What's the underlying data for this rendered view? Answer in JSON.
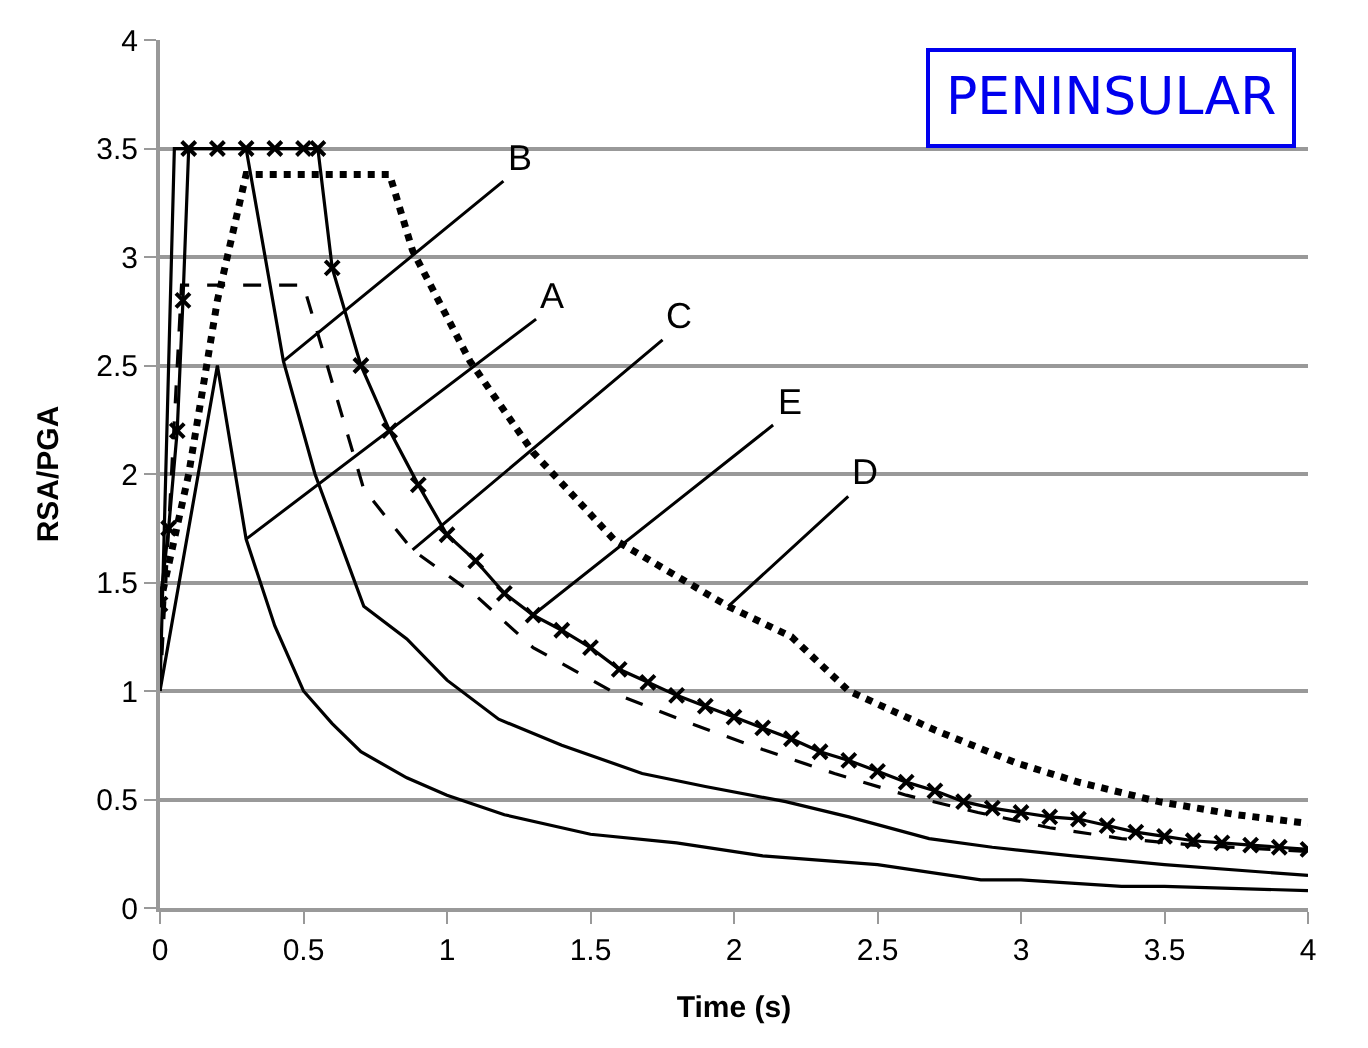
{
  "chart_data": {
    "type": "line",
    "title": "PENINSULAR",
    "xlabel": "Time (s)",
    "ylabel": "RSA/PGA",
    "xlim": [
      0,
      4
    ],
    "xticks": [
      0,
      0.5,
      1,
      1.5,
      2,
      2.5,
      3,
      3.5,
      4
    ],
    "ylim": [
      0,
      4
    ],
    "yticks": [
      0,
      0.5,
      1,
      1.5,
      2,
      2.5,
      3,
      3.5,
      4
    ],
    "grid": "y",
    "series": [
      {
        "color": "#000000",
        "line_style": "solid",
        "marker": "none",
        "x": [
          0,
          0.2,
          0.3,
          0.4,
          0.5,
          0.6,
          0.7,
          0.86,
          1.0,
          1.2,
          1.5,
          1.8,
          2.1,
          2.5,
          2.86,
          3.0,
          3.35,
          3.5,
          4.0
        ],
        "values": [
          1.0,
          2.5,
          1.7,
          1.3,
          1.0,
          0.85,
          0.72,
          0.6,
          0.52,
          0.43,
          0.34,
          0.3,
          0.24,
          0.2,
          0.13,
          0.13,
          0.1,
          0.1,
          0.08
        ]
      },
      {
        "color": "#000000",
        "line_style": "solid",
        "marker": "none",
        "x": [
          0,
          0.05,
          0.3,
          0.43,
          0.54,
          0.71,
          0.86,
          1.0,
          1.18,
          1.4,
          1.68,
          1.9,
          2.18,
          2.4,
          2.68,
          2.9,
          3.18,
          3.5,
          4.0
        ],
        "values": [
          1.0,
          3.5,
          3.5,
          2.52,
          2.0,
          1.39,
          1.24,
          1.05,
          0.87,
          0.75,
          0.62,
          0.56,
          0.49,
          0.42,
          0.32,
          0.28,
          0.24,
          0.2,
          0.15
        ]
      },
      {
        "color": "#000000",
        "line_style": "dashed",
        "marker": "none",
        "x": [
          0,
          0.075,
          0.5,
          0.71,
          0.88,
          1.1,
          1.3,
          1.6,
          1.85,
          2.1,
          2.35,
          2.6,
          2.85,
          3.1,
          3.35,
          3.6,
          4.0
        ],
        "values": [
          1.0,
          2.87,
          2.87,
          1.93,
          1.65,
          1.44,
          1.2,
          0.98,
          0.85,
          0.73,
          0.62,
          0.52,
          0.44,
          0.37,
          0.32,
          0.29,
          0.26
        ]
      },
      {
        "color": "#000000",
        "line_style": "dotted",
        "marker": "none",
        "x": [
          0,
          0.1,
          0.2,
          0.3,
          0.8,
          0.88,
          1.08,
          1.3,
          1.58,
          1.98,
          2.2,
          2.4,
          2.7,
          2.98,
          3.2,
          3.48,
          3.75,
          4.0
        ],
        "values": [
          1.4,
          2.0,
          2.8,
          3.38,
          3.38,
          3.03,
          2.52,
          2.1,
          1.7,
          1.39,
          1.25,
          1.0,
          0.82,
          0.67,
          0.58,
          0.49,
          0.43,
          0.39
        ]
      },
      {
        "color": "#000000",
        "line_style": "solid",
        "marker": "cross",
        "x": [
          0,
          0.03,
          0.06,
          0.08,
          0.1,
          0.2,
          0.3,
          0.4,
          0.5,
          0.55,
          0.6,
          0.7,
          0.8,
          0.9,
          1.0,
          1.1,
          1.2,
          1.3,
          1.4,
          1.5,
          1.6,
          1.7,
          1.8,
          1.9,
          2.0,
          2.1,
          2.2,
          2.3,
          2.4,
          2.5,
          2.6,
          2.7,
          2.8,
          2.9,
          3.0,
          3.1,
          3.2,
          3.3,
          3.4,
          3.5,
          3.6,
          3.7,
          3.8,
          3.9,
          4.0
        ],
        "values": [
          1.4,
          1.75,
          2.2,
          2.8,
          3.5,
          3.5,
          3.5,
          3.5,
          3.5,
          3.5,
          2.95,
          2.5,
          2.2,
          1.95,
          1.72,
          1.6,
          1.45,
          1.35,
          1.28,
          1.2,
          1.1,
          1.04,
          0.98,
          0.93,
          0.88,
          0.83,
          0.78,
          0.72,
          0.68,
          0.63,
          0.58,
          0.54,
          0.49,
          0.46,
          0.44,
          0.42,
          0.41,
          0.38,
          0.35,
          0.33,
          0.31,
          0.3,
          0.29,
          0.28,
          0.27
        ]
      }
    ],
    "annotations": [
      {
        "text": "B",
        "x": 0.43,
        "y": 2.52
      },
      {
        "text": "A",
        "x": 0.3,
        "y": 1.7
      },
      {
        "text": "C",
        "x": 0.88,
        "y": 1.65
      },
      {
        "text": "E",
        "x": 1.3,
        "y": 1.35
      },
      {
        "text": "D",
        "x": 1.98,
        "y": 1.39
      }
    ]
  }
}
